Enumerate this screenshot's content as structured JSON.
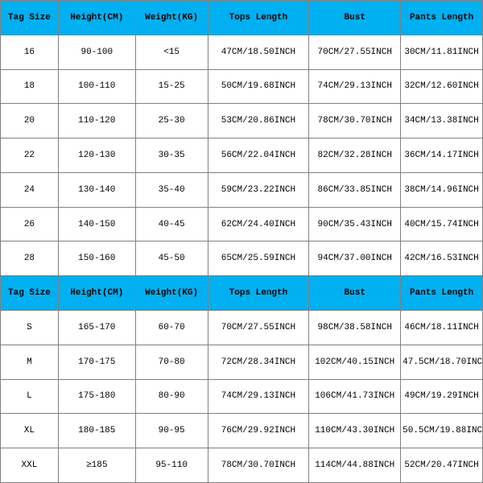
{
  "colors": {
    "header_bg": "#00b0f0",
    "header_text": "#000000",
    "cell_bg": "#ffffff",
    "cell_text": "#000000",
    "border": "#808080"
  },
  "typography": {
    "font_family": "Courier New, monospace",
    "header_fontsize": 11,
    "cell_fontsize": 11,
    "header_weight": "bold"
  },
  "col_widths_pct": [
    12,
    16,
    15,
    21,
    19,
    17
  ],
  "headers": [
    "Tag Size",
    "Height(CM)",
    "Weight(KG)",
    "Tops Length",
    "Bust",
    "Pants Length"
  ],
  "section1_rows": [
    [
      "16",
      "90-100",
      "<15",
      "47CM/18.50INCH",
      "70CM/27.55INCH",
      "30CM/11.81INCH"
    ],
    [
      "18",
      "100-110",
      "15-25",
      "50CM/19.68INCH",
      "74CM/29.13INCH",
      "32CM/12.60INCH"
    ],
    [
      "20",
      "110-120",
      "25-30",
      "53CM/20.86INCH",
      "78CM/30.70INCH",
      "34CM/13.38INCH"
    ],
    [
      "22",
      "120-130",
      "30-35",
      "56CM/22.04INCH",
      "82CM/32.28INCH",
      "36CM/14.17INCH"
    ],
    [
      "24",
      "130-140",
      "35-40",
      "59CM/23.22INCH",
      "86CM/33.85INCH",
      "38CM/14.96INCH"
    ],
    [
      "26",
      "140-150",
      "40-45",
      "62CM/24.40INCH",
      "90CM/35.43INCH",
      "40CM/15.74INCH"
    ],
    [
      "28",
      "150-160",
      "45-50",
      "65CM/25.59INCH",
      "94CM/37.00INCH",
      "42CM/16.53INCH"
    ]
  ],
  "section2_rows": [
    [
      "S",
      "165-170",
      "60-70",
      "70CM/27.55INCH",
      "98CM/38.58INCH",
      "46CM/18.11INCH"
    ],
    [
      "M",
      "170-175",
      "70-80",
      "72CM/28.34INCH",
      "102CM/40.15INCH",
      "47.5CM/18.70INCH"
    ],
    [
      "L",
      "175-180",
      "80-90",
      "74CM/29.13INCH",
      "106CM/41.73INCH",
      "49CM/19.29INCH"
    ],
    [
      "XL",
      "180-185",
      "90-95",
      "76CM/29.92INCH",
      "110CM/43.30INCH",
      "50.5CM/19.88INCH"
    ],
    [
      "XXL",
      "≥185",
      "95-110",
      "78CM/30.70INCH",
      "114CM/44.88INCH",
      "52CM/20.47INCH"
    ]
  ]
}
